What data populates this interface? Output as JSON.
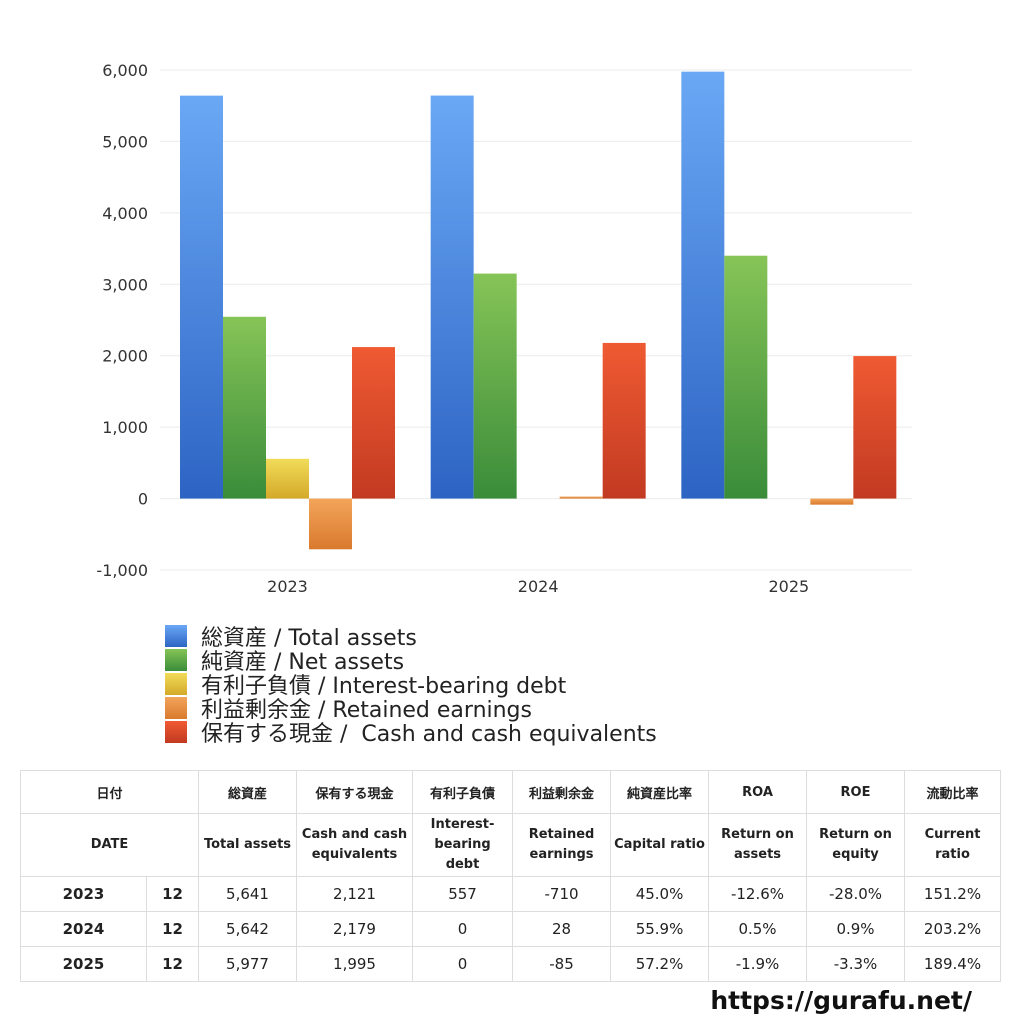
{
  "chart_data": {
    "type": "bar",
    "categories": [
      "2023",
      "2024",
      "2025"
    ],
    "ylim": [
      -1000,
      6000
    ],
    "yticks": [
      6000,
      5000,
      4000,
      3000,
      2000,
      1000,
      0,
      -1000
    ],
    "ytick_labels": [
      "6,000",
      "5,000",
      "4,000",
      "3,000",
      "2,000",
      "1,000",
      "0",
      "-1,000"
    ],
    "grid": true,
    "legend_position": "bottom-left",
    "series": [
      {
        "name": "総資産 / Total assets",
        "values": [
          5641,
          5642,
          5977
        ],
        "color_top": "#6aa8f5",
        "color_bottom": "#2d64c4"
      },
      {
        "name": "純資産 / Net assets",
        "values": [
          2545,
          3150,
          3400
        ],
        "color_top": "#86c457",
        "color_bottom": "#3a8c3a"
      },
      {
        "name": "有利子負債 / Interest-bearing debt",
        "values": [
          557,
          0,
          0
        ],
        "color_top": "#f1dc5a",
        "color_bottom": "#d4a928"
      },
      {
        "name": "利益剰余金 / Retained earnings",
        "values": [
          -710,
          28,
          -85
        ],
        "color_top": "#f2a55a",
        "color_bottom": "#d97a2e"
      },
      {
        "name": "保有する現金 /  Cash and cash equivalents",
        "values": [
          2121,
          2179,
          1995
        ],
        "color_top": "#ef5a32",
        "color_bottom": "#c23a22"
      }
    ]
  },
  "table": {
    "headers_ja": [
      "日付",
      "総資産",
      "保有する現金",
      "有利子負債",
      "利益剰余金",
      "純資産比率",
      "ROA",
      "ROE",
      "流動比率"
    ],
    "headers_en": [
      "DATE",
      "Total assets",
      "Cash and cash\nequivalents",
      "Interest-\nbearing\ndebt",
      "Retained\nearnings",
      "Capital ratio",
      "Return on\nassets",
      "Return on\nequity",
      "Current\nratio"
    ],
    "rows": [
      {
        "year": "2023",
        "month": "12",
        "cells": [
          "5,641",
          "2,121",
          "557",
          "-710",
          "45.0%",
          "-12.6%",
          "-28.0%",
          "151.2%"
        ]
      },
      {
        "year": "2024",
        "month": "12",
        "cells": [
          "5,642",
          "2,179",
          "0",
          "28",
          "55.9%",
          "0.5%",
          "0.9%",
          "203.2%"
        ]
      },
      {
        "year": "2025",
        "month": "12",
        "cells": [
          "5,977",
          "1,995",
          "0",
          "-85",
          "57.2%",
          "-1.9%",
          "-3.3%",
          "189.4%"
        ]
      }
    ]
  },
  "site_url": "https://gurafu.net/"
}
